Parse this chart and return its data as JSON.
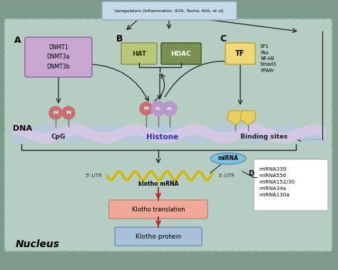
{
  "bg_outer": "#7d9b8d",
  "bg_inner": "#b5cdc3",
  "upregulator_box_color": "#c5dbe8",
  "upregulator_text": "Upregulators (Inflammation, ROS, Toxins, RAS, et al)",
  "nucleus_text": "Nucleus",
  "dnmt_box_color": "#c8a8d0",
  "dnmt_text": "DNMT1\nDNMT3a\nDNMT3b",
  "hat_box_color": "#b8c878",
  "hat_text": "HAT",
  "hdac_box_color": "#7a9050",
  "hdac_text": "HDAC",
  "tf_box_color": "#f0d878",
  "tf_text": "TF",
  "sp1_text": "SP1\nPax\nNF-kB\nSmad3\nPPARr",
  "dna_color1": "#b8c8e0",
  "dna_color2": "#d8c8e8",
  "cpg_text": "CpG",
  "histone_text": "Histone",
  "binding_text": "Binding sites",
  "dna_label": "DNA",
  "mrna_color": "#d4b800",
  "mrna_text": "klotho mRNA",
  "five_utr": "5'-UTR",
  "three_utr": "3'-UTR",
  "mirna_box_color": "#80c0e0",
  "mirna_text": "miRNA",
  "mirna_list": "miRNA339\nmiRNA556\nmiRNA152/30\nmiRNA34a\nmiRNA130a",
  "translation_box_color": "#f0a898",
  "translation_text": "Klotho translation",
  "protein_box_color": "#a8c0d8",
  "protein_text": "Klotho protein",
  "m_circle_color": "#c87070",
  "ac_circle_color": "#b898c8",
  "arrow_color": "#222222",
  "label_A": "A",
  "label_B": "B",
  "label_C": "C",
  "label_D": "D",
  "pentagon_color": "#e8d060"
}
